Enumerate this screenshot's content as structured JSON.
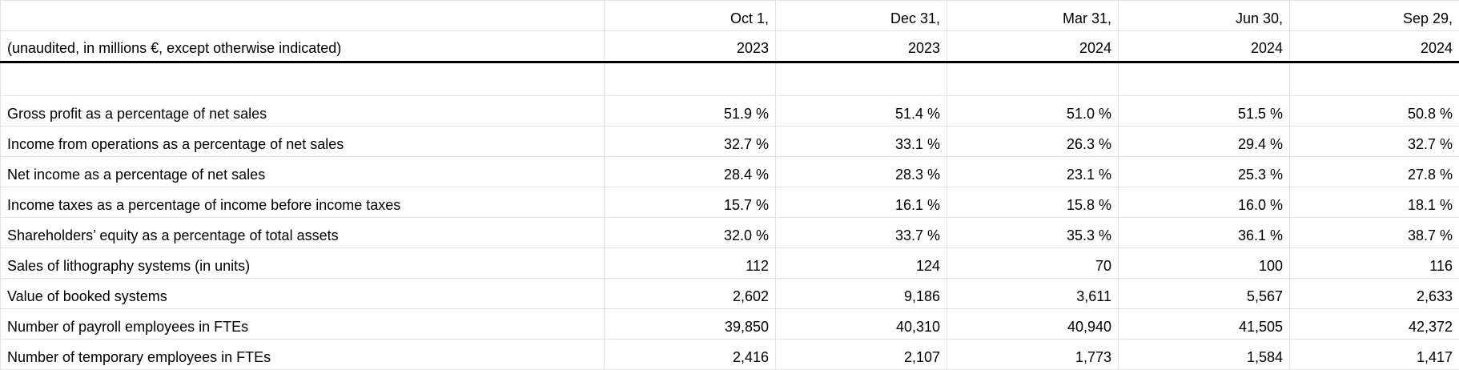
{
  "table": {
    "caption": "(unaudited, in millions €, except otherwise indicated)",
    "columns": [
      {
        "line1": "Oct 1,",
        "line2": "2023"
      },
      {
        "line1": "Dec 31,",
        "line2": "2023"
      },
      {
        "line1": "Mar 31,",
        "line2": "2024"
      },
      {
        "line1": "Jun 30,",
        "line2": "2024"
      },
      {
        "line1": "Sep 29,",
        "line2": "2024"
      }
    ],
    "rows": [
      {
        "label": "Gross profit as a percentage of net sales",
        "values": [
          "51.9 %",
          "51.4 %",
          "51.0 %",
          "51.5 %",
          "50.8 %"
        ]
      },
      {
        "label": "Income from operations as a percentage of net sales",
        "values": [
          "32.7 %",
          "33.1 %",
          "26.3 %",
          "29.4 %",
          "32.7 %"
        ]
      },
      {
        "label": "Net income as a percentage of net sales",
        "values": [
          "28.4 %",
          "28.3 %",
          "23.1 %",
          "25.3 %",
          "27.8 %"
        ]
      },
      {
        "label": "Income taxes as a percentage of income before income taxes",
        "values": [
          "15.7 %",
          "16.1 %",
          "15.8 %",
          "16.0 %",
          "18.1 %"
        ]
      },
      {
        "label": "Shareholders’ equity as a percentage of total assets",
        "values": [
          "32.0 %",
          "33.7 %",
          "35.3 %",
          "36.1 %",
          "38.7 %"
        ]
      },
      {
        "label": "Sales of lithography systems (in units)",
        "values": [
          "112",
          "124",
          "70",
          "100",
          "116"
        ]
      },
      {
        "label": "Value of booked systems",
        "values": [
          "2,602",
          "9,186",
          "3,611",
          "5,567",
          "2,633"
        ]
      },
      {
        "label": "Number of payroll employees in FTEs",
        "values": [
          "39,850",
          "40,310",
          "40,940",
          "41,505",
          "42,372"
        ]
      },
      {
        "label": "Number of temporary employees in FTEs",
        "values": [
          "2,416",
          "2,107",
          "1,773",
          "1,584",
          "1,417"
        ]
      }
    ]
  }
}
